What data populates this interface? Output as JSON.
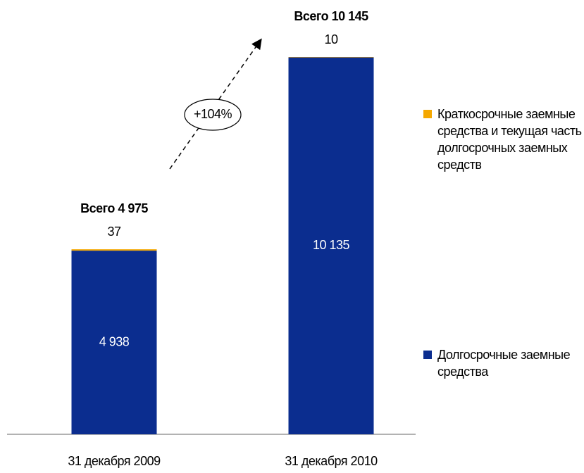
{
  "chart_data": {
    "type": "stacked_bar",
    "categories": [
      "31 декабря 2009",
      "31 декабря 2010"
    ],
    "series": [
      {
        "name": "Долгосрочные заемные средства",
        "color": "#0b2d8f",
        "values": [
          4938,
          10135
        ],
        "value_labels": [
          "4 938",
          "10 135"
        ]
      },
      {
        "name": "Краткосрочные заемные средства и текущая часть долгосрочных заемных средств",
        "color": "#f5a800",
        "values": [
          37,
          10
        ]
      }
    ],
    "annotations": [
      "Всего 4 975",
      "Всего 10 145",
      "+104%"
    ]
  }
}
